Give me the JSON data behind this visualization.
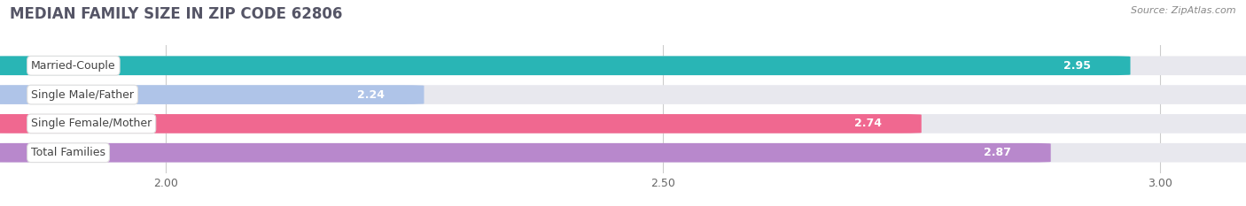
{
  "title": "MEDIAN FAMILY SIZE IN ZIP CODE 62806",
  "source": "Source: ZipAtlas.com",
  "categories": [
    "Married-Couple",
    "Single Male/Father",
    "Single Female/Mother",
    "Total Families"
  ],
  "values": [
    2.95,
    2.24,
    2.74,
    2.87
  ],
  "bar_colors": [
    "#29b5b5",
    "#afc4e8",
    "#f06890",
    "#b888cc"
  ],
  "xmin": 1.84,
  "xlim": [
    1.84,
    3.08
  ],
  "xticks": [
    2.0,
    2.5,
    3.0
  ],
  "xtick_labels": [
    "2.00",
    "2.50",
    "3.00"
  ],
  "bar_height": 0.62,
  "title_fontsize": 12,
  "source_fontsize": 8,
  "label_fontsize": 9,
  "value_fontsize": 9,
  "bg_color": "#ffffff",
  "bar_bg_color": "#e8e8ee",
  "grid_color": "#cccccc",
  "title_color": "#555566",
  "source_color": "#888888",
  "value_color": "#ffffff",
  "label_text_color": "#444444"
}
